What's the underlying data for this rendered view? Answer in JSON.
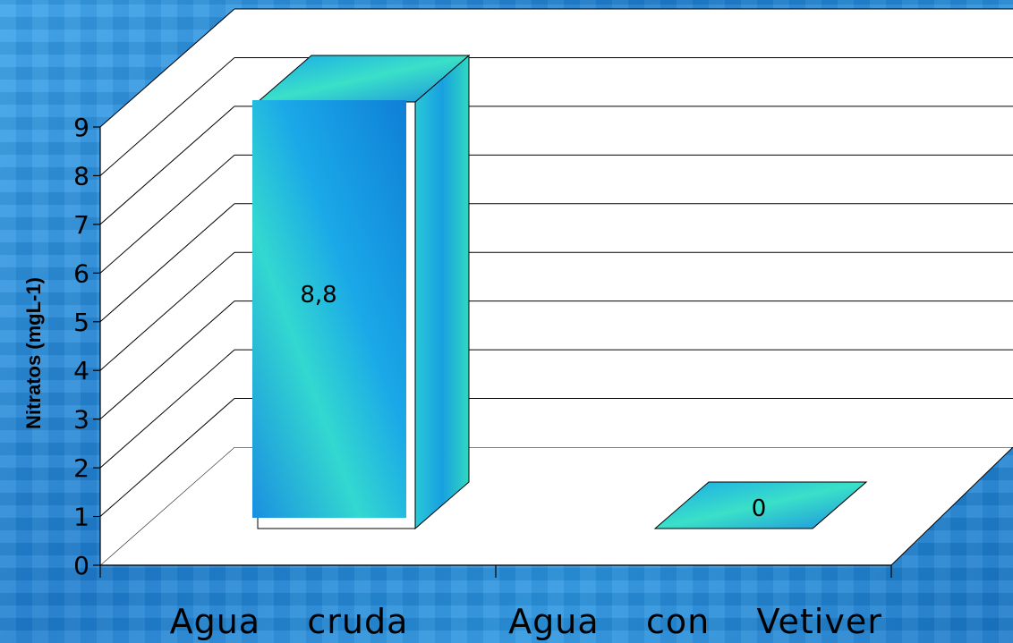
{
  "chart_data": {
    "type": "bar",
    "style": "3d",
    "categories": [
      "Agua    cruda",
      "Agua    con    Vetiver"
    ],
    "values": [
      8.8,
      0
    ],
    "data_labels": [
      "8,8",
      "0"
    ],
    "ylabel": "Nitratos (mgL-1)",
    "xlabel": "",
    "title": "",
    "ylim": [
      0,
      9
    ],
    "yticks": [
      "0",
      "1",
      "2",
      "3",
      "4",
      "5",
      "6",
      "7",
      "8",
      "9"
    ],
    "grid": true,
    "legend": "none",
    "colors": {
      "bar_front_a": "#1aa0e8",
      "bar_front_b": "#2ee0c8",
      "walls": "#ffffff",
      "background": "#2a8fd8"
    }
  }
}
